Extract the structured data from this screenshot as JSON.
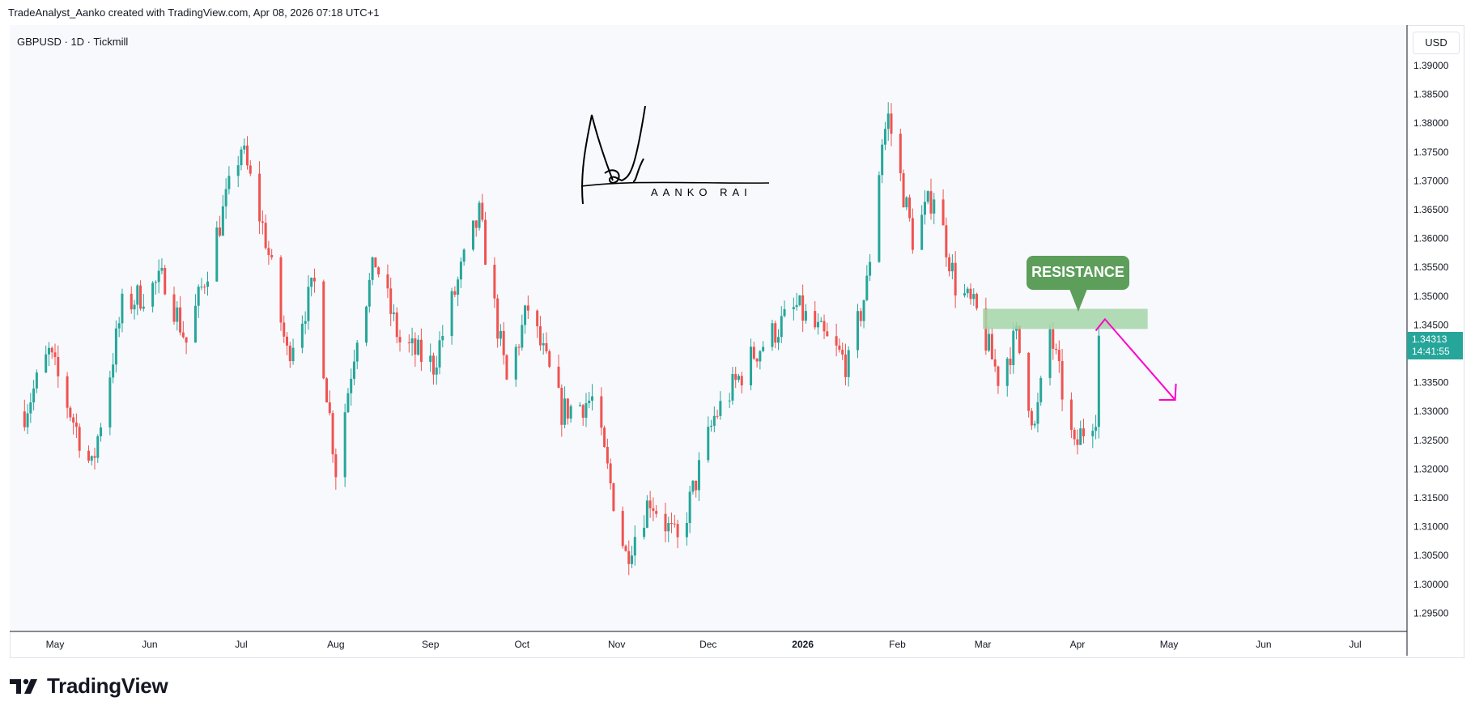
{
  "header": {
    "credit": "TradeAnalyst_Aanko created with TradingView.com, Apr 08, 2026 07:18 UTC+1"
  },
  "symbol_line": "GBPUSD · 1D · Tickmill",
  "currency": "USD",
  "price_tag": {
    "price": "1.34313",
    "countdown": "14:41:55"
  },
  "annotation": {
    "label": "RESISTANCE",
    "color": "#5d9e5b"
  },
  "signature": {
    "text": "AANKO RAI"
  },
  "brand": {
    "name": "TradingView"
  },
  "colors": {
    "up": "#26a69a",
    "down": "#ef5350",
    "resistance_zone": "#a5d6a7",
    "arrow": "#ff00cc",
    "plot_bg": "#f8f9fd"
  },
  "chart_data": {
    "type": "candlestick",
    "title": "",
    "xlabel": "",
    "ylabel": "",
    "ylim": [
      1.2925,
      1.3915
    ],
    "grid": false,
    "y_ticks": [
      "1.39000",
      "1.38500",
      "1.38000",
      "1.37500",
      "1.37000",
      "1.36500",
      "1.36000",
      "1.35500",
      "1.35000",
      "1.34500",
      "1.34000",
      "1.33500",
      "1.33000",
      "1.32500",
      "1.32000",
      "1.31500",
      "1.31000",
      "1.30500",
      "1.30000",
      "1.29500"
    ],
    "x_ticks": [
      {
        "label": "May",
        "date": "2025-05-01"
      },
      {
        "label": "Jun",
        "date": "2025-06-01"
      },
      {
        "label": "Jul",
        "date": "2025-07-01"
      },
      {
        "label": "Aug",
        "date": "2025-08-01"
      },
      {
        "label": "Sep",
        "date": "2025-09-01"
      },
      {
        "label": "Oct",
        "date": "2025-10-01"
      },
      {
        "label": "Nov",
        "date": "2025-11-01"
      },
      {
        "label": "Dec",
        "date": "2025-12-01"
      },
      {
        "label": "2026",
        "date": "2026-01-01",
        "bold": true
      },
      {
        "label": "Feb",
        "date": "2026-02-01"
      },
      {
        "label": "Mar",
        "date": "2026-03-01"
      },
      {
        "label": "Apr",
        "date": "2026-04-01"
      },
      {
        "label": "May",
        "date": "2026-05-01"
      },
      {
        "label": "Jun",
        "date": "2026-06-01"
      },
      {
        "label": "Jul",
        "date": "2026-07-01"
      }
    ],
    "close_path": [
      {
        "date": "2025-04-21",
        "close": 1.33
      },
      {
        "date": "2025-04-29",
        "close": 1.34
      },
      {
        "date": "2025-05-08",
        "close": 1.327
      },
      {
        "date": "2025-05-13",
        "close": 1.32
      },
      {
        "date": "2025-05-23",
        "close": 1.348
      },
      {
        "date": "2025-06-06",
        "close": 1.353
      },
      {
        "date": "2025-06-13",
        "close": 1.342
      },
      {
        "date": "2025-06-20",
        "close": 1.355
      },
      {
        "date": "2025-07-01",
        "close": 1.376
      },
      {
        "date": "2025-07-09",
        "close": 1.36
      },
      {
        "date": "2025-07-16",
        "close": 1.34
      },
      {
        "date": "2025-07-25",
        "close": 1.352
      },
      {
        "date": "2025-08-01",
        "close": 1.32
      },
      {
        "date": "2025-08-08",
        "close": 1.344
      },
      {
        "date": "2025-08-14",
        "close": 1.356
      },
      {
        "date": "2025-08-22",
        "close": 1.342
      },
      {
        "date": "2025-09-02",
        "close": 1.338
      },
      {
        "date": "2025-09-12",
        "close": 1.356
      },
      {
        "date": "2025-09-17",
        "close": 1.364
      },
      {
        "date": "2025-09-26",
        "close": 1.335
      },
      {
        "date": "2025-10-03",
        "close": 1.348
      },
      {
        "date": "2025-10-14",
        "close": 1.33
      },
      {
        "date": "2025-10-24",
        "close": 1.332
      },
      {
        "date": "2025-11-04",
        "close": 1.305
      },
      {
        "date": "2025-11-12",
        "close": 1.315
      },
      {
        "date": "2025-11-21",
        "close": 1.307
      },
      {
        "date": "2025-12-03",
        "close": 1.329
      },
      {
        "date": "2025-12-16",
        "close": 1.34
      },
      {
        "date": "2025-12-30",
        "close": 1.348
      },
      {
        "date": "2026-01-09",
        "close": 1.342
      },
      {
        "date": "2026-01-16",
        "close": 1.338
      },
      {
        "date": "2026-01-22",
        "close": 1.352
      },
      {
        "date": "2026-01-27",
        "close": 1.377
      },
      {
        "date": "2026-01-29",
        "close": 1.381
      },
      {
        "date": "2026-02-06",
        "close": 1.36
      },
      {
        "date": "2026-02-13",
        "close": 1.368
      },
      {
        "date": "2026-02-20",
        "close": 1.352
      },
      {
        "date": "2026-02-27",
        "close": 1.347
      },
      {
        "date": "2026-03-06",
        "close": 1.336
      },
      {
        "date": "2026-03-12",
        "close": 1.343
      },
      {
        "date": "2026-03-18",
        "close": 1.327
      },
      {
        "date": "2026-03-23",
        "close": 1.344
      },
      {
        "date": "2026-03-31",
        "close": 1.323
      },
      {
        "date": "2026-04-02",
        "close": 1.326
      },
      {
        "date": "2026-04-07",
        "close": 1.33
      },
      {
        "date": "2026-04-08",
        "close": 1.34313
      }
    ],
    "resistance_zone": {
      "date_from": "2026-03-01",
      "date_to": "2026-04-24",
      "price_low": 1.3443,
      "price_high": 1.3478
    },
    "projection_arrow": [
      {
        "date": "2026-04-10",
        "price": 1.346
      },
      {
        "date": "2026-05-03",
        "price": 1.332
      }
    ]
  }
}
